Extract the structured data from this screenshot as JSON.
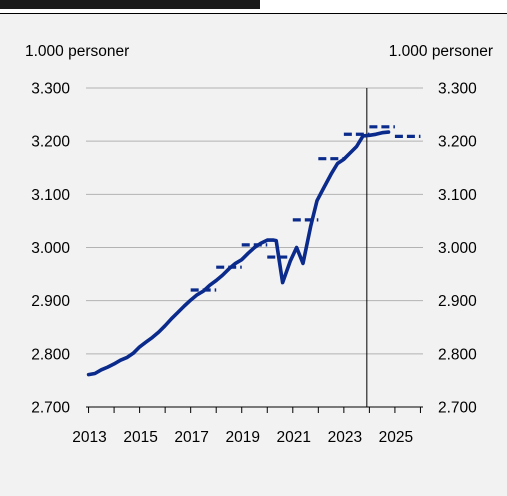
{
  "chart_data": {
    "type": "line",
    "title": "",
    "left_unit": "1.000 personer",
    "right_unit": "1.000 personer",
    "ylim": [
      2700,
      3300
    ],
    "y_ticks": [
      2700,
      2800,
      2900,
      3000,
      3100,
      3200,
      3300
    ],
    "y_tick_labels": [
      "2.700",
      "2.800",
      "2.900",
      "3.000",
      "3.100",
      "3.200",
      "3.300"
    ],
    "xlim": [
      2012.9,
      2026.1
    ],
    "x_tick_labels": [
      "2013",
      "2015",
      "2017",
      "2019",
      "2021",
      "2023",
      "2025"
    ],
    "x_tick_values": [
      2013,
      2015,
      2017,
      2019,
      2021,
      2023,
      2025
    ],
    "x_tick_marks": [
      2013,
      2014,
      2015,
      2016,
      2017,
      2018,
      2019,
      2020,
      2021,
      2022,
      2023,
      2024,
      2025,
      2026
    ],
    "forecast_start": 2023.9,
    "grid": true,
    "colors": {
      "series": "#0a2a8c",
      "grid": "#b3b3b3",
      "axis": "#000000"
    },
    "series": [
      {
        "style": "solid",
        "points": [
          [
            2013.0,
            2761
          ],
          [
            2013.25,
            2763
          ],
          [
            2013.5,
            2770
          ],
          [
            2013.75,
            2775
          ],
          [
            2014.0,
            2781
          ],
          [
            2014.25,
            2788
          ],
          [
            2014.5,
            2793
          ],
          [
            2014.75,
            2801
          ],
          [
            2015.0,
            2813
          ],
          [
            2015.25,
            2822
          ],
          [
            2015.5,
            2831
          ],
          [
            2015.75,
            2841
          ],
          [
            2016.0,
            2853
          ],
          [
            2016.25,
            2866
          ],
          [
            2016.5,
            2878
          ],
          [
            2016.75,
            2890
          ],
          [
            2017.0,
            2901
          ],
          [
            2017.25,
            2911
          ],
          [
            2017.5,
            2918
          ],
          [
            2017.75,
            2929
          ],
          [
            2018.0,
            2938
          ],
          [
            2018.25,
            2948
          ],
          [
            2018.5,
            2960
          ],
          [
            2018.75,
            2970
          ],
          [
            2019.0,
            2977
          ],
          [
            2019.25,
            2989
          ],
          [
            2019.5,
            3000
          ],
          [
            2019.75,
            3008
          ],
          [
            2020.0,
            3014
          ],
          [
            2020.25,
            3014
          ],
          [
            2020.35,
            3013
          ],
          [
            2020.6,
            2934
          ],
          [
            2020.9,
            2974
          ],
          [
            2021.15,
            3000
          ],
          [
            2021.4,
            2970
          ],
          [
            2021.7,
            3040
          ],
          [
            2021.95,
            3088
          ],
          [
            2022.2,
            3111
          ],
          [
            2022.5,
            3138
          ],
          [
            2022.75,
            3158
          ],
          [
            2023.0,
            3166
          ],
          [
            2023.25,
            3178
          ],
          [
            2023.5,
            3190
          ],
          [
            2023.75,
            3210
          ],
          [
            2024.0,
            3211
          ],
          [
            2024.25,
            3213
          ],
          [
            2024.5,
            3216
          ],
          [
            2024.75,
            3217
          ]
        ]
      }
    ],
    "annual_averages": [
      {
        "year": 2017,
        "value": 2920
      },
      {
        "year": 2018,
        "value": 2963
      },
      {
        "year": 2019,
        "value": 3005
      },
      {
        "year": 2020,
        "value": 2982
      },
      {
        "year": 2021,
        "value": 3052
      },
      {
        "year": 2022,
        "value": 3167
      },
      {
        "year": 2023,
        "value": 3213
      },
      {
        "year": 2024,
        "value": 3227
      },
      {
        "year": 2025,
        "value": 3209
      }
    ]
  }
}
